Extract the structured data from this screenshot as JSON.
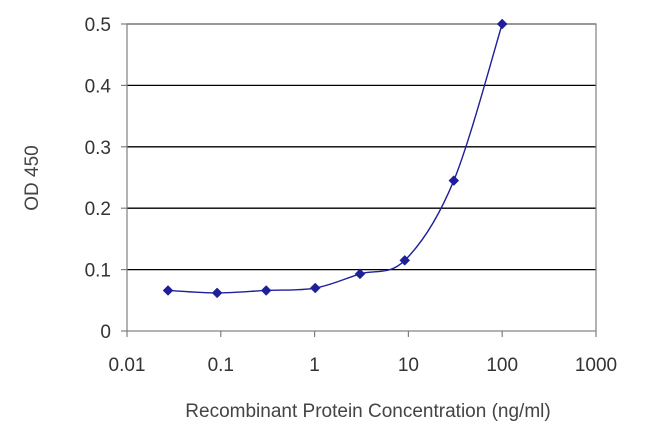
{
  "chart_data": {
    "type": "line",
    "title": "",
    "xlabel": "Recombinant Protein Concentration (ng/ml)",
    "ylabel": "OD 450",
    "x_scale": "log",
    "xlim": [
      0.01,
      1000
    ],
    "ylim": [
      0,
      0.5
    ],
    "x_ticks": [
      {
        "value": 0.01,
        "label": "0.01"
      },
      {
        "value": 0.1,
        "label": "0.1"
      },
      {
        "value": 1,
        "label": "1"
      },
      {
        "value": 10,
        "label": "10"
      },
      {
        "value": 100,
        "label": "100"
      },
      {
        "value": 1000,
        "label": "1000"
      }
    ],
    "y_ticks": [
      {
        "value": 0,
        "label": "0"
      },
      {
        "value": 0.1,
        "label": "0.1"
      },
      {
        "value": 0.2,
        "label": "0.2"
      },
      {
        "value": 0.3,
        "label": "0.3"
      },
      {
        "value": 0.4,
        "label": "0.4"
      },
      {
        "value": 0.5,
        "label": "0.5"
      }
    ],
    "grid": "horizontal",
    "legend": false,
    "series": [
      {
        "color": "#1f1f9a",
        "marker": "diamond",
        "points": [
          {
            "x": 0.0274,
            "y": 0.066
          },
          {
            "x": 0.0914,
            "y": 0.062
          },
          {
            "x": 0.3048,
            "y": 0.066
          },
          {
            "x": 1.016,
            "y": 0.07
          },
          {
            "x": 3.048,
            "y": 0.093
          },
          {
            "x": 9.144,
            "y": 0.115
          },
          {
            "x": 30.48,
            "y": 0.245
          },
          {
            "x": 100,
            "y": 0.5
          }
        ]
      }
    ]
  },
  "colors": {
    "grid": "#000000",
    "axis": "#7f7f7f",
    "series": "#1f1f9a"
  }
}
